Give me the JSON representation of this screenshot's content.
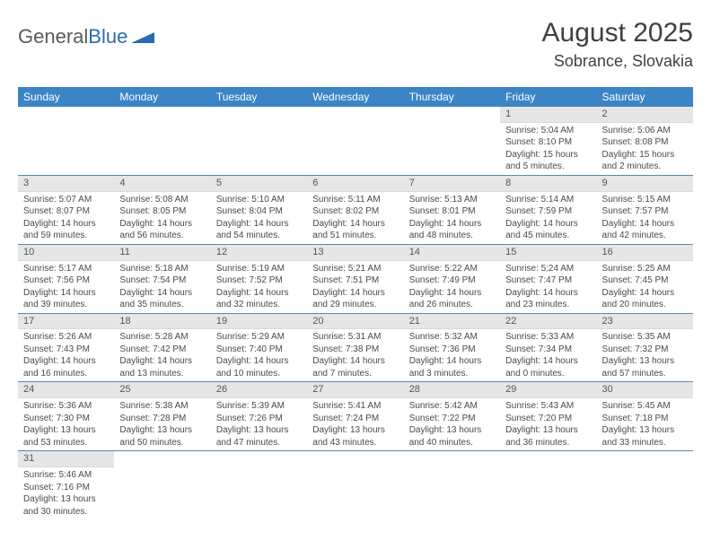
{
  "logo": {
    "text1": "General",
    "text2": "Blue"
  },
  "title": "August 2025",
  "location": "Sobrance, Slovakia",
  "colors": {
    "header_bg": "#3b85c6",
    "header_text": "#ffffff",
    "row_divider": "#5b86b0",
    "daynum_bg": "#e6e6e6",
    "logo_grey": "#5a5a5a",
    "logo_blue": "#2a6cb0"
  },
  "day_headers": [
    "Sunday",
    "Monday",
    "Tuesday",
    "Wednesday",
    "Thursday",
    "Friday",
    "Saturday"
  ],
  "weeks": [
    [
      {
        "n": "",
        "sr": "",
        "ss": "",
        "dl": ""
      },
      {
        "n": "",
        "sr": "",
        "ss": "",
        "dl": ""
      },
      {
        "n": "",
        "sr": "",
        "ss": "",
        "dl": ""
      },
      {
        "n": "",
        "sr": "",
        "ss": "",
        "dl": ""
      },
      {
        "n": "",
        "sr": "",
        "ss": "",
        "dl": ""
      },
      {
        "n": "1",
        "sr": "Sunrise: 5:04 AM",
        "ss": "Sunset: 8:10 PM",
        "dl": "Daylight: 15 hours and 5 minutes."
      },
      {
        "n": "2",
        "sr": "Sunrise: 5:06 AM",
        "ss": "Sunset: 8:08 PM",
        "dl": "Daylight: 15 hours and 2 minutes."
      }
    ],
    [
      {
        "n": "3",
        "sr": "Sunrise: 5:07 AM",
        "ss": "Sunset: 8:07 PM",
        "dl": "Daylight: 14 hours and 59 minutes."
      },
      {
        "n": "4",
        "sr": "Sunrise: 5:08 AM",
        "ss": "Sunset: 8:05 PM",
        "dl": "Daylight: 14 hours and 56 minutes."
      },
      {
        "n": "5",
        "sr": "Sunrise: 5:10 AM",
        "ss": "Sunset: 8:04 PM",
        "dl": "Daylight: 14 hours and 54 minutes."
      },
      {
        "n": "6",
        "sr": "Sunrise: 5:11 AM",
        "ss": "Sunset: 8:02 PM",
        "dl": "Daylight: 14 hours and 51 minutes."
      },
      {
        "n": "7",
        "sr": "Sunrise: 5:13 AM",
        "ss": "Sunset: 8:01 PM",
        "dl": "Daylight: 14 hours and 48 minutes."
      },
      {
        "n": "8",
        "sr": "Sunrise: 5:14 AM",
        "ss": "Sunset: 7:59 PM",
        "dl": "Daylight: 14 hours and 45 minutes."
      },
      {
        "n": "9",
        "sr": "Sunrise: 5:15 AM",
        "ss": "Sunset: 7:57 PM",
        "dl": "Daylight: 14 hours and 42 minutes."
      }
    ],
    [
      {
        "n": "10",
        "sr": "Sunrise: 5:17 AM",
        "ss": "Sunset: 7:56 PM",
        "dl": "Daylight: 14 hours and 39 minutes."
      },
      {
        "n": "11",
        "sr": "Sunrise: 5:18 AM",
        "ss": "Sunset: 7:54 PM",
        "dl": "Daylight: 14 hours and 35 minutes."
      },
      {
        "n": "12",
        "sr": "Sunrise: 5:19 AM",
        "ss": "Sunset: 7:52 PM",
        "dl": "Daylight: 14 hours and 32 minutes."
      },
      {
        "n": "13",
        "sr": "Sunrise: 5:21 AM",
        "ss": "Sunset: 7:51 PM",
        "dl": "Daylight: 14 hours and 29 minutes."
      },
      {
        "n": "14",
        "sr": "Sunrise: 5:22 AM",
        "ss": "Sunset: 7:49 PM",
        "dl": "Daylight: 14 hours and 26 minutes."
      },
      {
        "n": "15",
        "sr": "Sunrise: 5:24 AM",
        "ss": "Sunset: 7:47 PM",
        "dl": "Daylight: 14 hours and 23 minutes."
      },
      {
        "n": "16",
        "sr": "Sunrise: 5:25 AM",
        "ss": "Sunset: 7:45 PM",
        "dl": "Daylight: 14 hours and 20 minutes."
      }
    ],
    [
      {
        "n": "17",
        "sr": "Sunrise: 5:26 AM",
        "ss": "Sunset: 7:43 PM",
        "dl": "Daylight: 14 hours and 16 minutes."
      },
      {
        "n": "18",
        "sr": "Sunrise: 5:28 AM",
        "ss": "Sunset: 7:42 PM",
        "dl": "Daylight: 14 hours and 13 minutes."
      },
      {
        "n": "19",
        "sr": "Sunrise: 5:29 AM",
        "ss": "Sunset: 7:40 PM",
        "dl": "Daylight: 14 hours and 10 minutes."
      },
      {
        "n": "20",
        "sr": "Sunrise: 5:31 AM",
        "ss": "Sunset: 7:38 PM",
        "dl": "Daylight: 14 hours and 7 minutes."
      },
      {
        "n": "21",
        "sr": "Sunrise: 5:32 AM",
        "ss": "Sunset: 7:36 PM",
        "dl": "Daylight: 14 hours and 3 minutes."
      },
      {
        "n": "22",
        "sr": "Sunrise: 5:33 AM",
        "ss": "Sunset: 7:34 PM",
        "dl": "Daylight: 14 hours and 0 minutes."
      },
      {
        "n": "23",
        "sr": "Sunrise: 5:35 AM",
        "ss": "Sunset: 7:32 PM",
        "dl": "Daylight: 13 hours and 57 minutes."
      }
    ],
    [
      {
        "n": "24",
        "sr": "Sunrise: 5:36 AM",
        "ss": "Sunset: 7:30 PM",
        "dl": "Daylight: 13 hours and 53 minutes."
      },
      {
        "n": "25",
        "sr": "Sunrise: 5:38 AM",
        "ss": "Sunset: 7:28 PM",
        "dl": "Daylight: 13 hours and 50 minutes."
      },
      {
        "n": "26",
        "sr": "Sunrise: 5:39 AM",
        "ss": "Sunset: 7:26 PM",
        "dl": "Daylight: 13 hours and 47 minutes."
      },
      {
        "n": "27",
        "sr": "Sunrise: 5:41 AM",
        "ss": "Sunset: 7:24 PM",
        "dl": "Daylight: 13 hours and 43 minutes."
      },
      {
        "n": "28",
        "sr": "Sunrise: 5:42 AM",
        "ss": "Sunset: 7:22 PM",
        "dl": "Daylight: 13 hours and 40 minutes."
      },
      {
        "n": "29",
        "sr": "Sunrise: 5:43 AM",
        "ss": "Sunset: 7:20 PM",
        "dl": "Daylight: 13 hours and 36 minutes."
      },
      {
        "n": "30",
        "sr": "Sunrise: 5:45 AM",
        "ss": "Sunset: 7:18 PM",
        "dl": "Daylight: 13 hours and 33 minutes."
      }
    ],
    [
      {
        "n": "31",
        "sr": "Sunrise: 5:46 AM",
        "ss": "Sunset: 7:16 PM",
        "dl": "Daylight: 13 hours and 30 minutes."
      },
      {
        "n": "",
        "sr": "",
        "ss": "",
        "dl": ""
      },
      {
        "n": "",
        "sr": "",
        "ss": "",
        "dl": ""
      },
      {
        "n": "",
        "sr": "",
        "ss": "",
        "dl": ""
      },
      {
        "n": "",
        "sr": "",
        "ss": "",
        "dl": ""
      },
      {
        "n": "",
        "sr": "",
        "ss": "",
        "dl": ""
      },
      {
        "n": "",
        "sr": "",
        "ss": "",
        "dl": ""
      }
    ]
  ]
}
